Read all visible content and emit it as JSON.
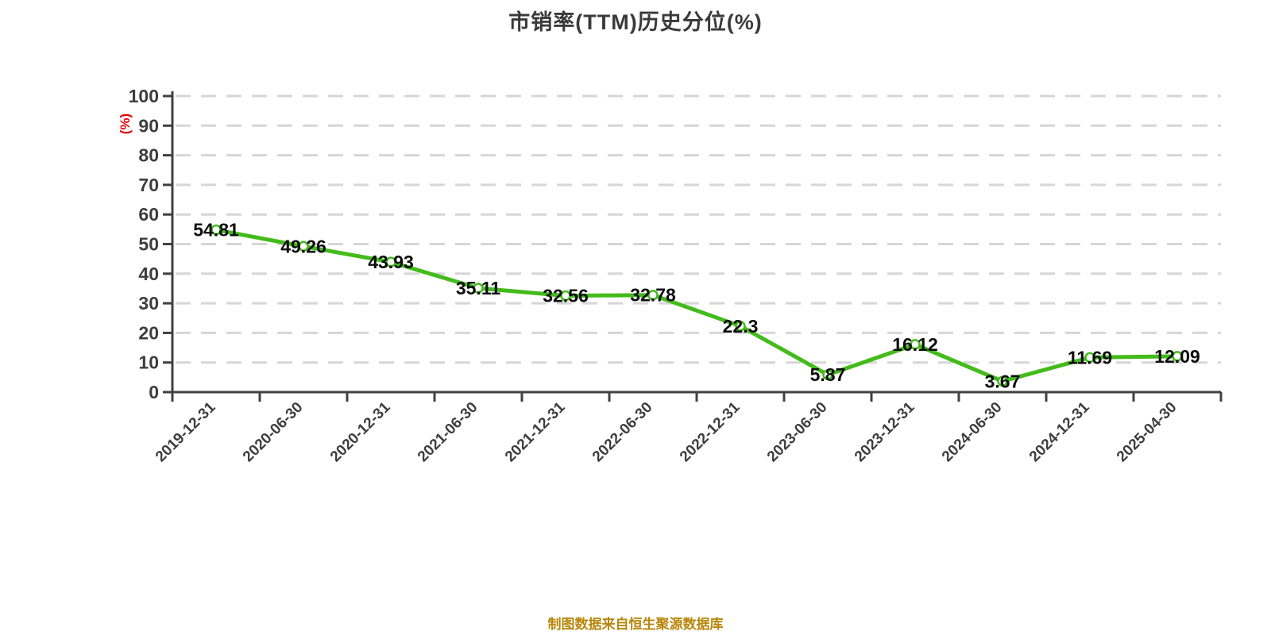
{
  "title": "市销率(TTM)历史分位(%)",
  "footer_note": "制图数据来自恒生聚源数据库",
  "colors": {
    "line": "#43bb1b",
    "marker_fill": "#ffffff",
    "axis": "#404040",
    "grid": "#d6d6d6",
    "title": "#3a3a3a",
    "data_label": "#0d0d0d",
    "tick_label": "#3d3d3d",
    "unit_label": "#e60000",
    "footer": "#b8860b"
  },
  "chart_data": {
    "type": "line",
    "title": "市销率(TTM)历史分位(%)",
    "ylabel": "(%)",
    "xlabel": "",
    "categories": [
      "2019-12-31",
      "2020-06-30",
      "2020-12-31",
      "2021-06-30",
      "2021-12-31",
      "2022-06-30",
      "2022-12-31",
      "2023-06-30",
      "2023-12-31",
      "2024-06-30",
      "2024-12-31",
      "2025-04-30"
    ],
    "values": [
      54.81,
      49.26,
      43.93,
      35.11,
      32.56,
      32.78,
      22.3,
      5.87,
      16.12,
      3.67,
      11.69,
      12.09
    ],
    "ylim": [
      0,
      100
    ],
    "ytick_step": 10,
    "grid": "horizontal-dashed",
    "legend": "none",
    "data_labels": true,
    "x_tick_rotation": -45
  }
}
